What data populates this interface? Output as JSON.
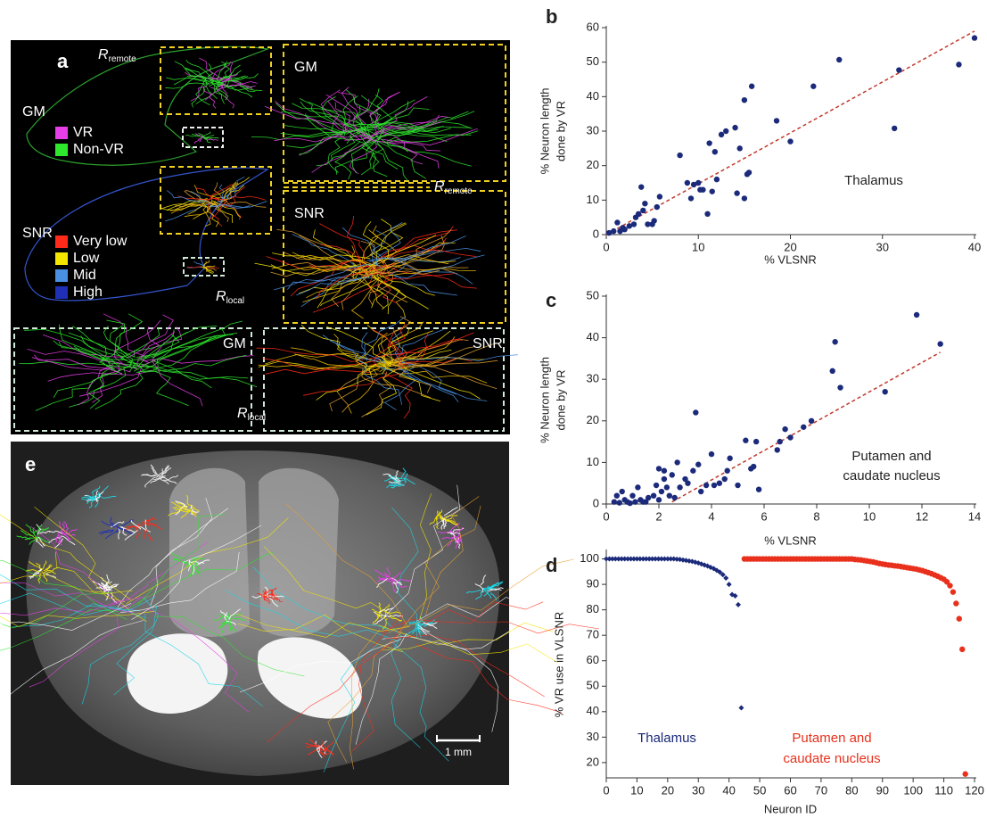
{
  "panel_a": {
    "label": "a",
    "gm": [
      "GM",
      "GM",
      "GM"
    ],
    "snr": [
      "SNR",
      "SNR",
      "SNR"
    ],
    "r_remote": [
      {
        "base": "R",
        "sub": "remote"
      },
      {
        "base": "R",
        "sub": "remote"
      }
    ],
    "r_local": [
      {
        "base": "R",
        "sub": "local"
      },
      {
        "base": "R",
        "sub": "local"
      }
    ],
    "legend_vr": [
      {
        "name": "VR",
        "color": "#e83ee8"
      },
      {
        "name": "Non-VR",
        "color": "#2ee82e"
      }
    ],
    "legend_snr": [
      {
        "name": "Very low",
        "color": "#ff2a1a"
      },
      {
        "name": "Low",
        "color": "#f5e600"
      },
      {
        "name": "Mid",
        "color": "#4a90e2"
      },
      {
        "name": "High",
        "color": "#1f2fb8"
      }
    ]
  },
  "panel_e": {
    "label": "e",
    "scale_bar": "1 mm"
  },
  "chart_data": [
    {
      "type": "scatter",
      "label": "b",
      "xlabel": "% VLSNR",
      "ylabel": [
        "% Neuron length",
        "done by VR"
      ],
      "annotation": [
        "Thalamus"
      ],
      "color": "#1b2a7a",
      "marker": "circle",
      "x": [
        0.3,
        0.8,
        1.2,
        1.5,
        1.8,
        2,
        2.5,
        3,
        3.2,
        3.5,
        3.8,
        4,
        4.2,
        4.5,
        5,
        5.2,
        5.5,
        5.8,
        8,
        8.8,
        9.2,
        9.5,
        10,
        10.2,
        10.5,
        11,
        11.2,
        11.5,
        11.8,
        12,
        12.5,
        13,
        14,
        14.2,
        14.5,
        15,
        15,
        15.3,
        15.5,
        15.8,
        18.5,
        20,
        22.5,
        25.3,
        31.3,
        31.8,
        38.3,
        40
      ],
      "values": [
        0.5,
        1,
        3.5,
        1,
        2,
        1.5,
        2.5,
        3,
        5,
        6,
        13.8,
        7,
        9,
        3,
        3,
        4,
        8,
        11,
        23,
        15,
        10.5,
        14.5,
        15,
        13,
        13,
        6,
        26.5,
        12.5,
        24,
        16,
        29,
        30,
        31,
        12,
        25,
        10.5,
        39,
        17.5,
        18,
        43,
        33,
        27,
        43,
        50.7,
        30.8,
        47.7,
        49.3,
        57
      ],
      "trend_line": {
        "x": [
          0,
          40
        ],
        "values": [
          0,
          59
        ],
        "color": "#c0392b"
      },
      "xlim": [
        0,
        40
      ],
      "xticks": [
        0,
        10,
        20,
        30,
        40
      ],
      "ylim": [
        0,
        60
      ],
      "yticks": [
        0,
        10,
        20,
        30,
        40,
        50,
        60
      ]
    },
    {
      "type": "scatter",
      "label": "c",
      "xlabel": "% VLSNR",
      "ylabel": [
        "% Neuron length",
        "done by VR"
      ],
      "annotation": [
        "Putamen and",
        "caudate nucleus"
      ],
      "color": "#1b2a7a",
      "marker": "circle",
      "x": [
        0.3,
        0.4,
        0.5,
        0.6,
        0.7,
        0.8,
        0.9,
        1,
        1.1,
        1.2,
        1.3,
        1.4,
        1.5,
        1.6,
        1.8,
        1.9,
        2,
        2,
        2.1,
        2.2,
        2.2,
        2.3,
        2.4,
        2.5,
        2.6,
        2.7,
        2.8,
        3,
        3.1,
        3.3,
        3.4,
        3.5,
        3.6,
        3.8,
        4,
        4.1,
        4.3,
        4.5,
        4.6,
        4.7,
        5,
        5.3,
        5.5,
        5.6,
        5.7,
        5.8,
        6.5,
        6.6,
        6.8,
        7,
        7.5,
        7.8,
        8.6,
        8.7,
        8.9,
        10.6,
        11.8,
        12.7
      ],
      "values": [
        0.5,
        2,
        0.3,
        3,
        1,
        0.5,
        0.2,
        2,
        0.5,
        4,
        1,
        0.5,
        0.5,
        1.5,
        2,
        4.5,
        8.5,
        1,
        3,
        8,
        6,
        4,
        2,
        7,
        1.5,
        10,
        4,
        6,
        5,
        8,
        22,
        9.5,
        3,
        4.5,
        12,
        4.5,
        5,
        6,
        8,
        11,
        4.5,
        15.3,
        8.5,
        9,
        15,
        3.5,
        13,
        15,
        18,
        16,
        18.5,
        20,
        32,
        39,
        28,
        27,
        45.5,
        38.5
      ],
      "trend_line": {
        "x": [
          2.5,
          12.7
        ],
        "values": [
          0.5,
          36.5
        ],
        "color": "#c0392b"
      },
      "xlim": [
        0,
        14
      ],
      "xticks": [
        0,
        2,
        4,
        6,
        8,
        10,
        12,
        14
      ],
      "ylim": [
        0,
        50
      ],
      "yticks": [
        0,
        10,
        20,
        30,
        40,
        50
      ]
    },
    {
      "type": "scatter",
      "label": "d",
      "xlabel": "Neuron ID",
      "ylabel": [
        "% VR use in VLSNR"
      ],
      "series": [
        {
          "label_lines": [
            "Thalamus"
          ],
          "color": "#1b2a7a",
          "marker": "diamond",
          "x": [
            0,
            1,
            2,
            3,
            4,
            5,
            6,
            7,
            8,
            9,
            10,
            11,
            12,
            13,
            14,
            15,
            16,
            17,
            18,
            19,
            20,
            21,
            22,
            23,
            24,
            25,
            26,
            27,
            28,
            29,
            30,
            31,
            32,
            33,
            34,
            35,
            36,
            37,
            38,
            39,
            40,
            41,
            42,
            43,
            44
          ],
          "values": [
            100,
            100,
            100,
            100,
            100,
            100,
            100,
            100,
            100,
            100,
            100,
            100,
            100,
            100,
            100,
            100,
            100,
            100,
            100,
            100,
            100,
            100,
            100,
            99.9,
            99.8,
            99.6,
            99.4,
            99.2,
            99,
            98.7,
            98.4,
            98,
            97.6,
            97.2,
            96.7,
            96.2,
            95.5,
            94.8,
            93.8,
            92.5,
            90,
            86,
            85.5,
            82,
            41.5
          ]
        },
        {
          "label_lines": [
            "Putamen and",
            "caudate nucleus"
          ],
          "color": "#e8301c",
          "marker": "circle",
          "x": [
            45,
            46,
            47,
            48,
            49,
            50,
            51,
            52,
            53,
            54,
            55,
            56,
            57,
            58,
            59,
            60,
            61,
            62,
            63,
            64,
            65,
            66,
            67,
            68,
            69,
            70,
            71,
            72,
            73,
            74,
            75,
            76,
            77,
            78,
            79,
            80,
            81,
            82,
            83,
            84,
            85,
            86,
            87,
            88,
            89,
            90,
            91,
            92,
            93,
            94,
            95,
            96,
            97,
            98,
            99,
            100,
            101,
            102,
            103,
            104,
            105,
            106,
            107,
            108,
            109,
            110,
            111,
            112,
            113,
            114,
            115,
            116,
            117
          ],
          "values": [
            100,
            100,
            100,
            100,
            100,
            100,
            100,
            100,
            100,
            100,
            100,
            100,
            100,
            100,
            100,
            100,
            100,
            100,
            100,
            100,
            100,
            100,
            100,
            100,
            100,
            100,
            100,
            100,
            100,
            100,
            100,
            100,
            100,
            100,
            100,
            100,
            99.8,
            99.7,
            99.6,
            99.4,
            99.2,
            99,
            98.8,
            98.5,
            98.2,
            98,
            97.8,
            97.6,
            97.5,
            97.3,
            97.2,
            97,
            96.8,
            96.6,
            96.4,
            96.2,
            96,
            95.7,
            95.4,
            95,
            94.6,
            94.2,
            93.7,
            93.2,
            92.6,
            92,
            91,
            89.5,
            87,
            82.5,
            76.5,
            64.5,
            15.5
          ]
        }
      ],
      "xlim": [
        0,
        120
      ],
      "xticks": [
        0,
        10,
        20,
        30,
        40,
        50,
        60,
        70,
        80,
        90,
        100,
        110,
        120
      ],
      "ylim": [
        14,
        103
      ],
      "yticks": [
        20,
        30,
        40,
        50,
        60,
        70,
        80,
        90,
        100
      ]
    }
  ]
}
